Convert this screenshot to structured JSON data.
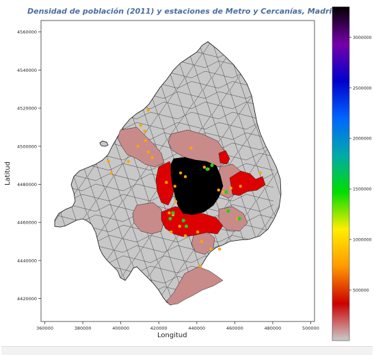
{
  "chart_data": {
    "type": "map",
    "title": "Densidad de población (2011) y estaciones de Metro y Cercanías, Madrid",
    "xlabel": "Longitud",
    "ylabel": "Latitud",
    "xlim": [
      358000,
      502000
    ],
    "ylim": [
      4408000,
      4566000
    ],
    "x_ticks": [
      360000,
      380000,
      400000,
      420000,
      440000,
      460000,
      480000,
      500000
    ],
    "y_ticks": [
      4420000,
      4440000,
      4460000,
      4480000,
      4500000,
      4520000,
      4540000,
      4560000
    ],
    "colorbar": {
      "range": [
        0,
        3300000
      ],
      "ticks": [
        500000,
        1000000,
        1500000,
        2000000,
        2500000,
        3000000
      ],
      "colormap": "nipy_spectral_r",
      "colors": [
        "#cccccc",
        "#cc0000",
        "#ff9900",
        "#ffee00",
        "#00dd00",
        "#00aaaa",
        "#0066ff",
        "#0000cc",
        "#7700aa",
        "#000000"
      ]
    },
    "stations": {
      "metro_color": "#ffa500",
      "cercanias_color": "#22cc22",
      "metro": [
        [
          414500,
          4519000
        ],
        [
          410500,
          4511000
        ],
        [
          412500,
          4508000
        ],
        [
          413000,
          4503000
        ],
        [
          409000,
          4500000
        ],
        [
          414500,
          4497000
        ],
        [
          416500,
          4494000
        ],
        [
          404000,
          4492000
        ],
        [
          393500,
          4492000
        ],
        [
          395000,
          4486000
        ],
        [
          431500,
          4486000
        ],
        [
          434000,
          4484000
        ],
        [
          424000,
          4481000
        ],
        [
          428500,
          4479000
        ],
        [
          429000,
          4471000
        ],
        [
          425500,
          4465000
        ],
        [
          427500,
          4464000
        ],
        [
          426500,
          4455000
        ],
        [
          434000,
          4453000
        ],
        [
          440500,
          4455000
        ],
        [
          442500,
          4450000
        ],
        [
          442000,
          4437000
        ],
        [
          447500,
          4446000
        ],
        [
          437000,
          4499000
        ],
        [
          444000,
          4489000
        ],
        [
          446000,
          4488000
        ],
        [
          451500,
          4477000
        ],
        [
          454000,
          4476000
        ],
        [
          458000,
          4478000
        ],
        [
          456000,
          4466000
        ],
        [
          461500,
          4462000
        ],
        [
          463000,
          4479000
        ],
        [
          473500,
          4486000
        ],
        [
          452000,
          4446000
        ],
        [
          431000,
          4458000
        ]
      ],
      "cercanias": [
        [
          448000,
          4490000
        ],
        [
          455500,
          4476000
        ],
        [
          456500,
          4466000
        ],
        [
          462500,
          4462000
        ],
        [
          427500,
          4465000
        ],
        [
          426000,
          4462000
        ],
        [
          433000,
          4461000
        ],
        [
          434500,
          4458000
        ],
        [
          445500,
          4488000
        ]
      ]
    }
  }
}
